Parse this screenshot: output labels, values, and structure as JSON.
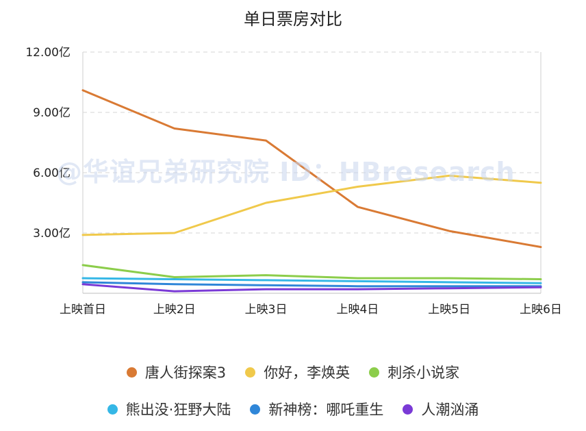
{
  "chart_data": {
    "type": "line",
    "title": "单日票房对比",
    "categories": [
      "上映首日",
      "上映2日",
      "上映3日",
      "上映4日",
      "上映5日",
      "上映6日"
    ],
    "y_ticks": [
      "12.00亿",
      "9.00亿",
      "6.00亿",
      "3.00亿"
    ],
    "y_tick_values": [
      12,
      9,
      6,
      3
    ],
    "ylim": [
      0,
      12
    ],
    "ylabel": "",
    "xlabel": "",
    "grid": "horizontal dashed",
    "legend_position": "bottom",
    "series": [
      {
        "name": "唐人街探案3",
        "color": "#d97a34",
        "values": [
          10.1,
          8.2,
          7.6,
          4.3,
          3.1,
          2.3
        ]
      },
      {
        "name": "你好，李焕英",
        "color": "#f0c94b",
        "values": [
          2.9,
          3.0,
          4.5,
          5.3,
          5.85,
          5.5
        ]
      },
      {
        "name": "刺杀小说家",
        "color": "#8ccd4b",
        "values": [
          1.4,
          0.8,
          0.9,
          0.75,
          0.75,
          0.7
        ]
      },
      {
        "name": "熊出没·狂野大陆",
        "color": "#35b7e6",
        "values": [
          0.75,
          0.7,
          0.65,
          0.6,
          0.55,
          0.5
        ]
      },
      {
        "name": "新神榜：哪吒重生",
        "color": "#2f86d8",
        "values": [
          0.55,
          0.45,
          0.4,
          0.35,
          0.35,
          0.35
        ]
      },
      {
        "name": "人潮汹涌",
        "color": "#7a3ad6",
        "values": [
          0.45,
          0.1,
          0.2,
          0.2,
          0.25,
          0.3
        ]
      }
    ]
  },
  "watermark": "@华谊兄弟研究院 ID：HBresearch"
}
